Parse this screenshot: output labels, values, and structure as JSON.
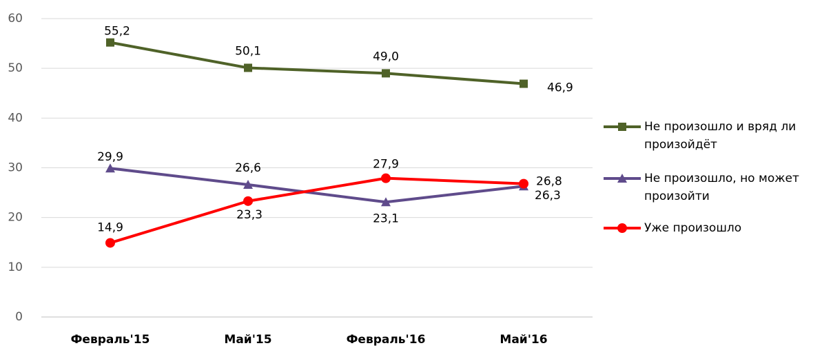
{
  "chart_data": {
    "type": "line",
    "categories": [
      "Февраль'15",
      "Май'15",
      "Февраль'16",
      "Май'16"
    ],
    "series": [
      {
        "name": "Не произошло и вряд ли произойдёт",
        "color": "#4f6228",
        "marker": "square",
        "values": [
          55.2,
          50.1,
          49.0,
          46.9
        ],
        "value_labels": [
          "55,2",
          "50,1",
          "49,0",
          "46,9"
        ]
      },
      {
        "name": "Не произошло, но может произойти",
        "color": "#5f4b8b",
        "marker": "triangle",
        "values": [
          29.9,
          26.6,
          23.1,
          26.3
        ],
        "value_labels": [
          "29,9",
          "26,6",
          "23,1",
          "26,3"
        ]
      },
      {
        "name": "Уже произошло",
        "color": "#ff0000",
        "marker": "circle",
        "values": [
          14.9,
          23.3,
          27.9,
          26.8
        ],
        "value_labels": [
          "14,9",
          "23,3",
          "27,9",
          "26,8"
        ]
      }
    ],
    "ylim": [
      0,
      60
    ],
    "yticks": [
      0,
      10,
      20,
      30,
      40,
      50,
      60
    ],
    "grid": true,
    "legend": "right"
  }
}
